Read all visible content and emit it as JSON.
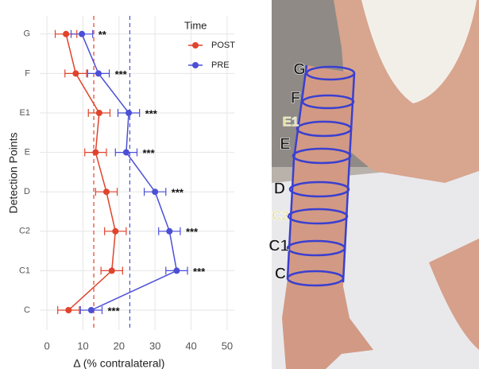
{
  "chart_data": {
    "type": "line",
    "y_label": "Detection Points",
    "x_label": "Δ (% contralateral)",
    "legend_title": "Time",
    "legend_position": "top-right",
    "categories": [
      "C",
      "C1",
      "C2",
      "D",
      "E",
      "E1",
      "F",
      "G"
    ],
    "series": [
      {
        "name": "POST",
        "color": "#e0432c",
        "values": [
          6,
          18,
          19,
          16.5,
          13.5,
          14.5,
          8,
          5.3
        ],
        "errors": [
          3,
          3,
          3,
          3,
          3,
          3,
          3,
          3
        ]
      },
      {
        "name": "PRE",
        "color": "#4b4fd6",
        "values": [
          12.3,
          36,
          34,
          30,
          22,
          22.7,
          14.3,
          9.7
        ],
        "errors": [
          3,
          3,
          3,
          3,
          3,
          3,
          3,
          3
        ]
      }
    ],
    "annotations": [
      "***",
      "***",
      "***",
      "***",
      "***",
      "***",
      "***",
      "**"
    ],
    "reference_lines": [
      {
        "value": 13,
        "color": "#e0432c"
      },
      {
        "value": 23,
        "color": "#4b4fd6"
      }
    ],
    "xlim": [
      -2,
      52
    ],
    "xticks": [
      0,
      10,
      20,
      30,
      40,
      50
    ],
    "grid": true
  },
  "photo": {
    "labels": [
      "G",
      "F",
      "E1",
      "E",
      "D",
      "C2",
      "C1",
      "C"
    ]
  }
}
